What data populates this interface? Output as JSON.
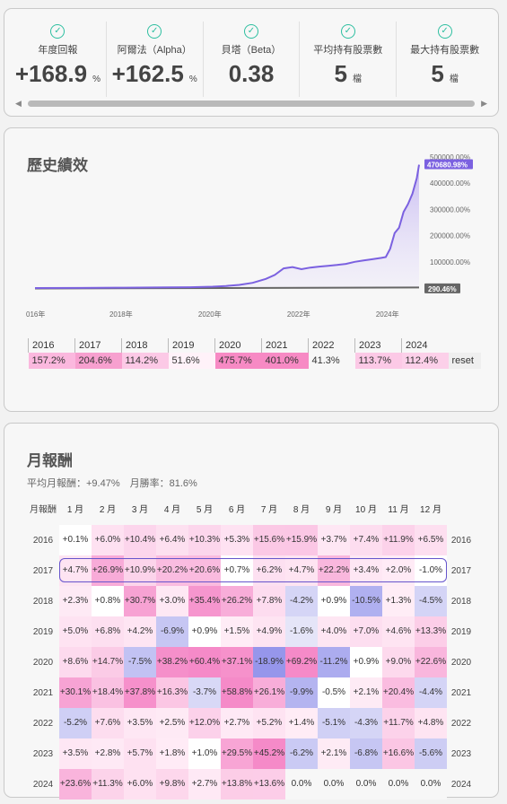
{
  "stats": [
    {
      "label": "年度回報",
      "value": "+168.9",
      "unit": "%"
    },
    {
      "label": "阿爾法（Alpha）",
      "value": "+162.5",
      "unit": "%"
    },
    {
      "label": "貝塔（Beta）",
      "value": "0.38",
      "unit": ""
    },
    {
      "label": "平均持有股票數",
      "value": "5",
      "unit": "檔"
    },
    {
      "label": "最大持有股票數",
      "value": "5",
      "unit": "檔"
    }
  ],
  "performance": {
    "title": "歷史績效",
    "chart_data": {
      "type": "line",
      "x_ticks": [
        "016年",
        "2018年",
        "2020年",
        "2022年",
        "2024年"
      ],
      "y_ticks": [
        "500000.00%",
        "400000.00%",
        "300000.00%",
        "200000.00%",
        "100000.00%"
      ],
      "ylim": [
        0,
        500000
      ],
      "series": [
        {
          "end_label": "470680.98%",
          "color": "#7b61e0",
          "x": [
            2016.0,
            2017.0,
            2018.0,
            2019.0,
            2019.5,
            2020.0,
            2020.3,
            2020.6,
            2020.9,
            2021.2,
            2021.4,
            2021.6,
            2021.8,
            2022.0,
            2022.2,
            2022.4,
            2022.6,
            2022.8,
            2023.0,
            2023.2,
            2023.4,
            2023.6,
            2023.8,
            2023.9,
            2024.0,
            2024.1,
            2024.2,
            2024.3,
            2024.4,
            2024.5,
            2024.6,
            2024.65
          ],
          "y": [
            0,
            500,
            1500,
            2500,
            3000,
            5000,
            8000,
            12000,
            20000,
            35000,
            50000,
            75000,
            80000,
            72000,
            78000,
            82000,
            85000,
            88000,
            92000,
            100000,
            105000,
            110000,
            115000,
            118000,
            150000,
            210000,
            230000,
            290000,
            320000,
            360000,
            420000,
            470681
          ]
        },
        {
          "end_label": "290.46%",
          "color": "#666666",
          "x": [
            2016.0,
            2024.65
          ],
          "y": [
            0,
            290
          ]
        }
      ]
    },
    "yearly_headers": [
      "2016",
      "2017",
      "2018",
      "2019",
      "2020",
      "2021",
      "2022",
      "2023",
      "2024"
    ],
    "yearly_values": [
      "157.2%",
      "204.6%",
      "114.2%",
      "51.6%",
      "475.7%",
      "401.0%",
      "41.3%",
      "113.7%",
      "112.4%"
    ],
    "yearly_colors": [
      "#fbb8de",
      "#f7a0cf",
      "#fcc9e6",
      "#fff2f9",
      "#f78ac4",
      "#f78ac4",
      "#f7f7f7",
      "#fcc9e6",
      "#fcd0e9"
    ],
    "reset_label": "reset"
  },
  "monthly": {
    "title": "月報酬",
    "avg_line": "平均月報酬：+9.47%　月勝率：81.6%",
    "corner_label": "月報酬",
    "months": [
      "1 月",
      "2 月",
      "3 月",
      "4 月",
      "5 月",
      "6 月",
      "7 月",
      "8 月",
      "9 月",
      "10 月",
      "11 月",
      "12 月"
    ],
    "rows": [
      {
        "year": "2016",
        "values": [
          "+0.1%",
          "+6.0%",
          "+10.4%",
          "+6.4%",
          "+10.3%",
          "+5.3%",
          "+15.6%",
          "+15.9%",
          "+3.7%",
          "+7.4%",
          "+11.9%",
          "+6.5%"
        ]
      },
      {
        "year": "2017",
        "values": [
          "+4.7%",
          "+26.9%",
          "+10.9%",
          "+20.2%",
          "+20.6%",
          "+0.7%",
          "+6.2%",
          "+4.7%",
          "+22.2%",
          "+3.4%",
          "+2.0%",
          "-1.0%"
        ]
      },
      {
        "year": "2018",
        "values": [
          "+2.3%",
          "+0.8%",
          "+30.7%",
          "+3.0%",
          "+35.4%",
          "+26.2%",
          "+7.8%",
          "-4.2%",
          "+0.9%",
          "-10.5%",
          "+1.3%",
          "-4.5%"
        ]
      },
      {
        "year": "2019",
        "values": [
          "+5.0%",
          "+6.8%",
          "+4.2%",
          "-6.9%",
          "+0.9%",
          "+1.5%",
          "+4.9%",
          "-1.6%",
          "+4.0%",
          "+7.0%",
          "+4.6%",
          "+13.3%"
        ]
      },
      {
        "year": "2020",
        "values": [
          "+8.6%",
          "+14.7%",
          "-7.5%",
          "+38.2%",
          "+60.4%",
          "+37.1%",
          "-18.9%",
          "+69.2%",
          "-11.2%",
          "+0.9%",
          "+9.0%",
          "+22.6%"
        ]
      },
      {
        "year": "2021",
        "values": [
          "+30.1%",
          "+18.4%",
          "+37.8%",
          "+16.3%",
          "-3.7%",
          "+58.8%",
          "+26.1%",
          "-9.9%",
          "-0.5%",
          "+2.1%",
          "+20.4%",
          "-4.4%"
        ]
      },
      {
        "year": "2022",
        "values": [
          "-5.2%",
          "+7.6%",
          "+3.5%",
          "+2.5%",
          "+12.0%",
          "+2.7%",
          "+5.2%",
          "+1.4%",
          "-5.1%",
          "-4.3%",
          "+11.7%",
          "+4.8%"
        ]
      },
      {
        "year": "2023",
        "values": [
          "+3.5%",
          "+2.8%",
          "+5.7%",
          "+1.8%",
          "+1.0%",
          "+29.5%",
          "+45.2%",
          "-6.2%",
          "+2.1%",
          "-6.8%",
          "+16.6%",
          "-5.6%"
        ]
      },
      {
        "year": "2024",
        "values": [
          "+23.6%",
          "+11.3%",
          "+6.0%",
          "+9.8%",
          "+2.7%",
          "+13.8%",
          "+13.6%",
          "0.0%",
          "0.0%",
          "0.0%",
          "0.0%",
          "0.0%"
        ]
      }
    ]
  }
}
